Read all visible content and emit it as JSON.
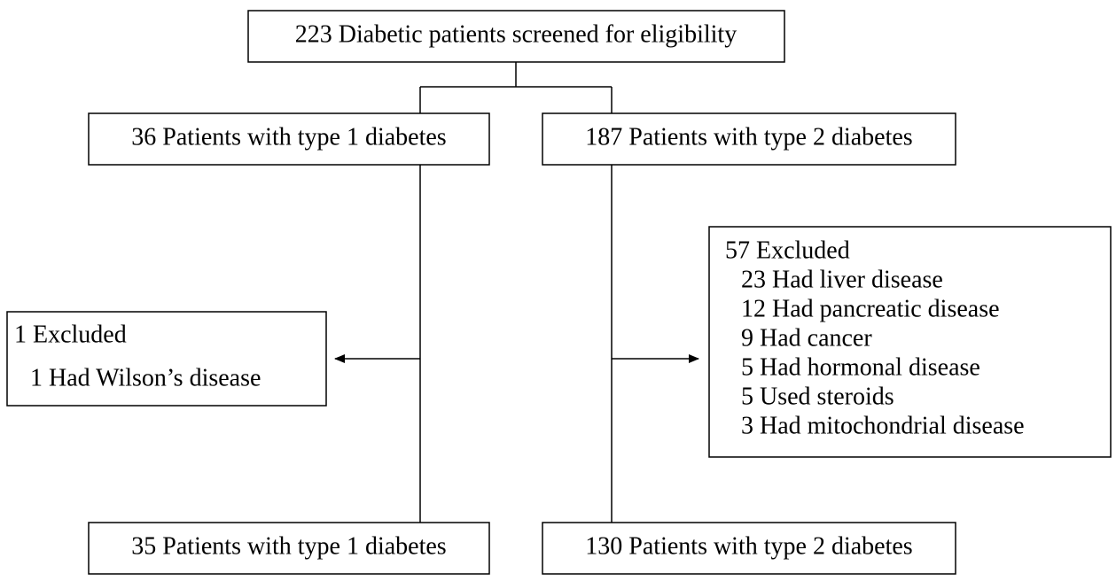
{
  "nodes": [
    {
      "label": "223 Diabetic patients screened for eligibility"
    },
    {
      "label": "36 Patients with type 1 diabetes"
    },
    {
      "label": "187 Patients with type 2 diabetes"
    },
    {
      "label": "1 Excluded",
      "items": [
        "1 Had Wilson’s disease"
      ]
    },
    {
      "label": "57 Excluded",
      "items": [
        "23 Had liver disease",
        "12 Had pancreatic disease",
        "9 Had cancer",
        "5 Had hormonal disease",
        "5 Used steroids",
        "3 Had mitochondrial disease"
      ]
    },
    {
      "label": "35 Patients with type 1 diabetes"
    },
    {
      "label": "130 Patients with type 2 diabetes"
    }
  ]
}
